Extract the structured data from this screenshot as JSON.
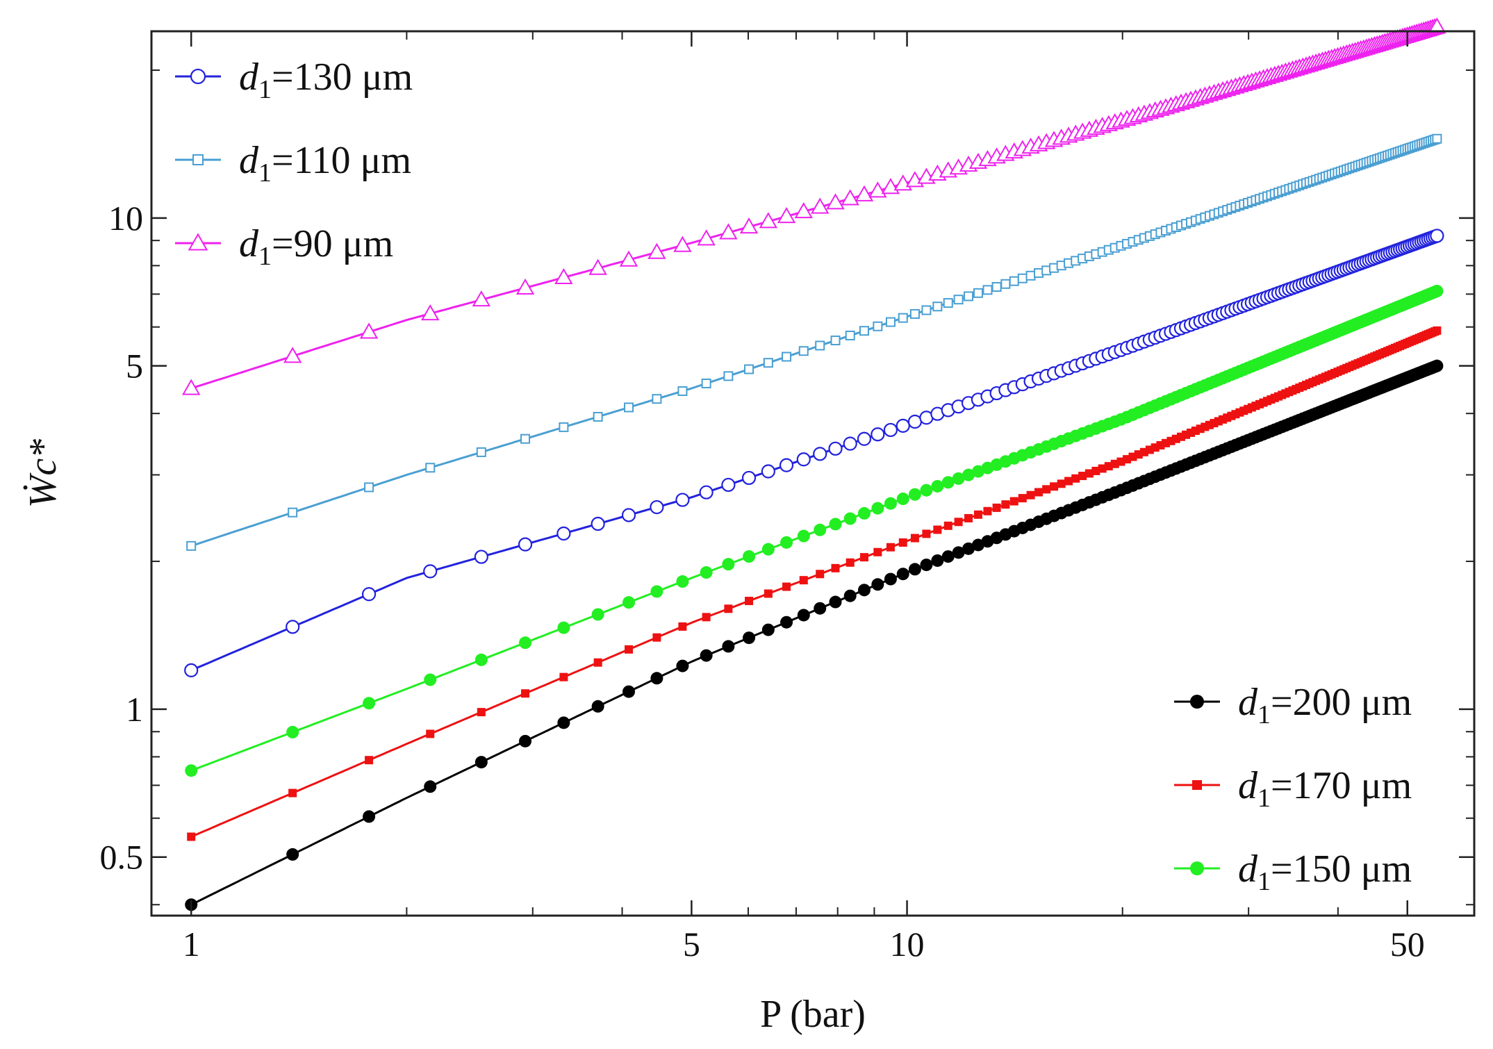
{
  "chart_data": {
    "type": "line",
    "title": "",
    "xlabel": "P (bar)",
    "ylabel": "Ẇc*",
    "xscale": "log",
    "yscale": "log",
    "xlim": [
      0.88,
      62
    ],
    "ylim": [
      0.38,
      24
    ],
    "xticks": [
      1,
      5,
      10,
      50
    ],
    "xtick_labels": [
      "1",
      "5",
      "10",
      "50"
    ],
    "yticks": [
      0.5,
      1,
      5,
      10
    ],
    "ytick_labels": [
      "0.5",
      "1",
      "5",
      "10"
    ],
    "grid": false,
    "x": [
      1,
      2,
      5,
      10,
      20,
      55
    ],
    "series": [
      {
        "name": "d1=130 μm",
        "diameter": "130",
        "color": "#2222dd",
        "marker": "circle-open",
        "values": [
          1.2,
          1.85,
          2.7,
          3.8,
          5.4,
          9.2
        ]
      },
      {
        "name": "d1=110 μm",
        "diameter": "110",
        "color": "#4a9fd2",
        "marker": "square-open",
        "values": [
          2.15,
          3.0,
          4.5,
          6.3,
          8.8,
          14.5
        ]
      },
      {
        "name": "d1=90 μm",
        "diameter": "90",
        "color": "#ee22ee",
        "marker": "triangle-open",
        "values": [
          4.5,
          6.2,
          8.9,
          11.8,
          15.8,
          24.5
        ]
      },
      {
        "name": "d1=200 μm",
        "diameter": "200",
        "color": "#000000",
        "marker": "circle-filled",
        "values": [
          0.4,
          0.66,
          1.25,
          1.9,
          2.8,
          5.0
        ]
      },
      {
        "name": "d1=170 μm",
        "diameter": "170",
        "color": "#ee1111",
        "marker": "square-filled",
        "values": [
          0.55,
          0.85,
          1.5,
          2.2,
          3.2,
          5.9
        ]
      },
      {
        "name": "d1=150 μm",
        "diameter": "150",
        "color": "#22ee22",
        "marker": "circle-filled",
        "values": [
          0.75,
          1.1,
          1.85,
          2.7,
          3.9,
          7.1
        ]
      }
    ],
    "legends": [
      {
        "position": "top-left",
        "entries": [
          0,
          1,
          2
        ]
      },
      {
        "position": "bottom-right",
        "entries": [
          3,
          4,
          5
        ]
      }
    ],
    "legend_unit": "μm"
  }
}
